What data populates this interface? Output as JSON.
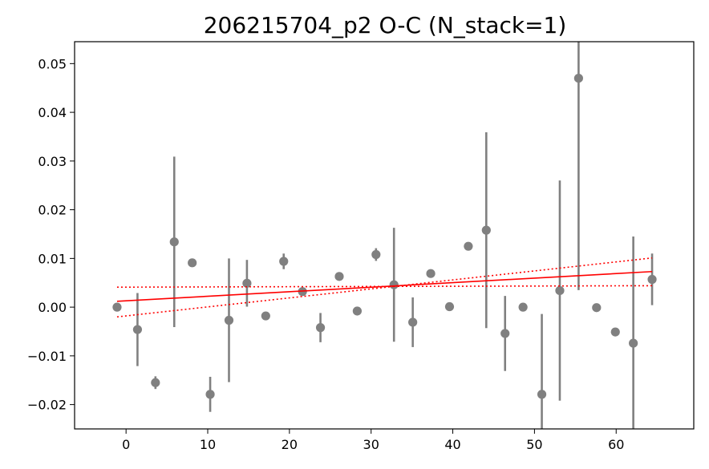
{
  "chart_data": {
    "type": "scatter",
    "title": "206215704_p2 O-C (N_stack=1)",
    "xlabel": "",
    "ylabel": "",
    "xlim": [
      -6.3,
      69.5
    ],
    "ylim": [
      -0.025,
      0.0545
    ],
    "xticks": [
      0,
      10,
      20,
      30,
      40,
      50,
      60
    ],
    "xtick_labels": [
      "0",
      "10",
      "20",
      "30",
      "40",
      "50",
      "60"
    ],
    "yticks": [
      -0.02,
      -0.01,
      0.0,
      0.01,
      0.02,
      0.03,
      0.04,
      0.05
    ],
    "ytick_labels": [
      "−0.02",
      "−0.01",
      "0.00",
      "0.01",
      "0.02",
      "0.03",
      "0.04",
      "0.05"
    ],
    "grid": false,
    "marker_color": "#808080",
    "fit_color": "#ff0000",
    "points": [
      {
        "x": -1.1,
        "y": 0.0,
        "err": 0.0
      },
      {
        "x": 1.4,
        "y": -0.0046,
        "err": 0.0075
      },
      {
        "x": 3.6,
        "y": -0.0155,
        "err": 0.0013
      },
      {
        "x": 5.9,
        "y": 0.0134,
        "err": 0.0175
      },
      {
        "x": 8.1,
        "y": 0.0091,
        "err": 0.0
      },
      {
        "x": 10.3,
        "y": -0.0179,
        "err": 0.0036
      },
      {
        "x": 12.6,
        "y": -0.0027,
        "err": 0.0127
      },
      {
        "x": 14.8,
        "y": 0.0049,
        "err": 0.0048
      },
      {
        "x": 17.1,
        "y": -0.0018,
        "err": 0.0
      },
      {
        "x": 19.3,
        "y": 0.0094,
        "err": 0.0016
      },
      {
        "x": 21.6,
        "y": 0.0032,
        "err": 0.0
      },
      {
        "x": 23.8,
        "y": -0.0042,
        "err": 0.003
      },
      {
        "x": 26.1,
        "y": 0.0063,
        "err": 0.0
      },
      {
        "x": 28.3,
        "y": -0.0008,
        "err": 0.0
      },
      {
        "x": 30.6,
        "y": 0.0108,
        "err": 0.0013
      },
      {
        "x": 32.8,
        "y": 0.0046,
        "err": 0.0117
      },
      {
        "x": 35.1,
        "y": -0.0031,
        "err": 0.0051
      },
      {
        "x": 37.3,
        "y": 0.0069,
        "err": 0.0
      },
      {
        "x": 39.6,
        "y": 0.0001,
        "err": 0.0
      },
      {
        "x": 41.9,
        "y": 0.0125,
        "err": 0.0
      },
      {
        "x": 44.1,
        "y": 0.0158,
        "err": 0.0201
      },
      {
        "x": 46.4,
        "y": -0.0054,
        "err": 0.0077
      },
      {
        "x": 48.6,
        "y": 0.0,
        "err": 0.0
      },
      {
        "x": 50.9,
        "y": -0.0179,
        "err": 0.0165
      },
      {
        "x": 53.1,
        "y": 0.0034,
        "err": 0.0226
      },
      {
        "x": 55.4,
        "y": 0.047,
        "err": 0.0435
      },
      {
        "x": 57.6,
        "y": -0.0001,
        "err": 0.0
      },
      {
        "x": 59.9,
        "y": -0.0051,
        "err": 0.0
      },
      {
        "x": 62.1,
        "y": -0.0074,
        "err": 0.0219
      },
      {
        "x": 64.4,
        "y": 0.0057,
        "err": 0.0053
      }
    ],
    "fit": {
      "x": [
        -1.1,
        64.4
      ],
      "y": [
        0.0012,
        0.0073
      ]
    },
    "fit_bounds": [
      {
        "x": [
          -1.1,
          64.4
        ],
        "y": [
          -0.002,
          0.0101
        ]
      },
      {
        "x": [
          -1.1,
          64.4
        ],
        "y": [
          0.0041,
          0.0044
        ]
      }
    ]
  }
}
